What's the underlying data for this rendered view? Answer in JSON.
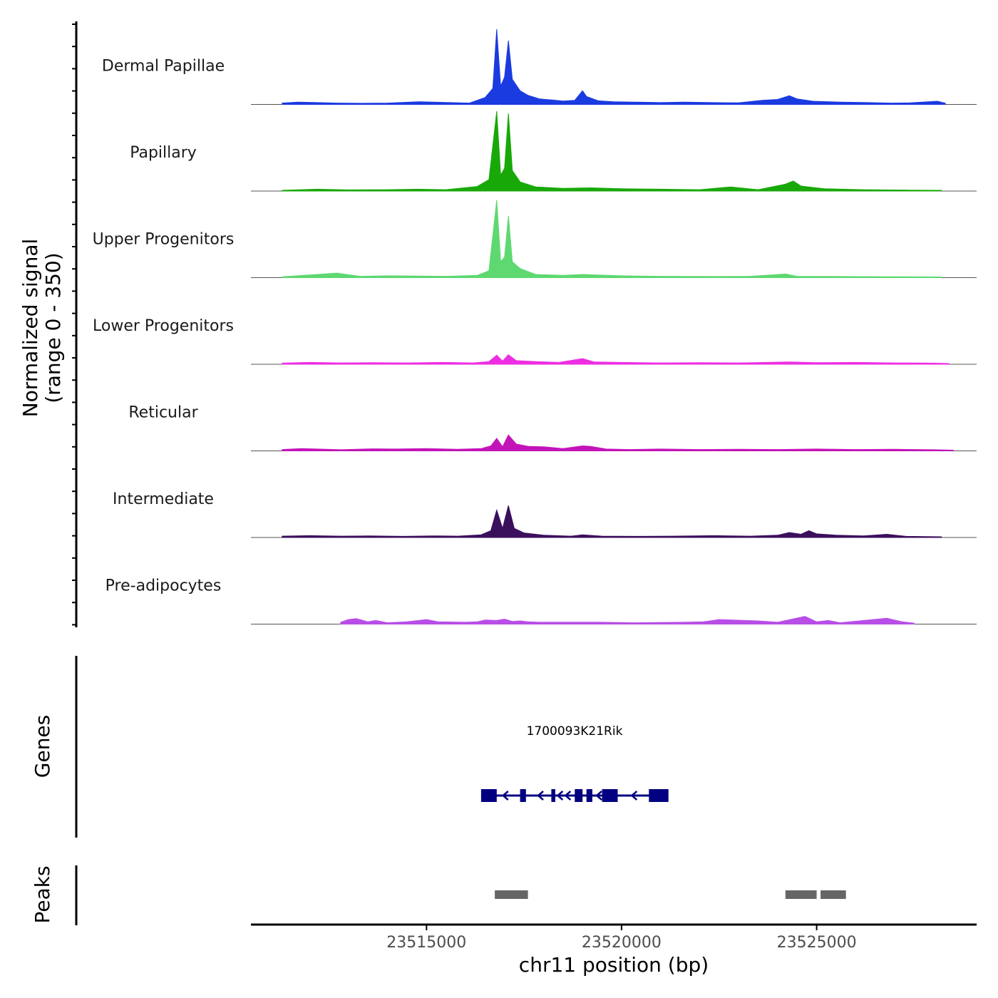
{
  "chart_data": {
    "type": "area",
    "title": "",
    "chromosome": "chr11",
    "xlabel": "chr11 position (bp)",
    "ylabel_line1": "Normalized signal",
    "ylabel_line2": "(range 0 - 350)",
    "y_range": [
      0,
      350
    ],
    "xlim": [
      23510500,
      23529100
    ],
    "x_ticks": [
      {
        "value": 23515000,
        "label": "23515000"
      },
      {
        "value": 23520000,
        "label": "23520000"
      },
      {
        "value": 23525000,
        "label": "23525000"
      }
    ],
    "series": [
      {
        "name": "Dermal Papillae",
        "color": "#1a3be0",
        "points": [
          [
            23511300,
            6
          ],
          [
            23511700,
            10
          ],
          [
            23512200,
            8
          ],
          [
            23512700,
            6
          ],
          [
            23513300,
            5
          ],
          [
            23514000,
            6
          ],
          [
            23514800,
            12
          ],
          [
            23515600,
            8
          ],
          [
            23516100,
            6
          ],
          [
            23516500,
            30
          ],
          [
            23516700,
            70
          ],
          [
            23516800,
            330
          ],
          [
            23516900,
            80
          ],
          [
            23517000,
            120
          ],
          [
            23517100,
            280
          ],
          [
            23517200,
            110
          ],
          [
            23517400,
            60
          ],
          [
            23517600,
            40
          ],
          [
            23517900,
            24
          ],
          [
            23518200,
            20
          ],
          [
            23518500,
            15
          ],
          [
            23518800,
            18
          ],
          [
            23519000,
            60
          ],
          [
            23519100,
            35
          ],
          [
            23519400,
            16
          ],
          [
            23519800,
            12
          ],
          [
            23520400,
            10
          ],
          [
            23521000,
            8
          ],
          [
            23521600,
            10
          ],
          [
            23522300,
            8
          ],
          [
            23523000,
            7
          ],
          [
            23523600,
            18
          ],
          [
            23524000,
            22
          ],
          [
            23524300,
            38
          ],
          [
            23524500,
            24
          ],
          [
            23524900,
            14
          ],
          [
            23525600,
            10
          ],
          [
            23526300,
            8
          ],
          [
            23526900,
            6
          ],
          [
            23527400,
            7
          ],
          [
            23528100,
            14
          ],
          [
            23528300,
            5
          ]
        ]
      },
      {
        "name": "Papillary",
        "color": "#18a808",
        "points": [
          [
            23511300,
            3
          ],
          [
            23512200,
            8
          ],
          [
            23513000,
            5
          ],
          [
            23514000,
            6
          ],
          [
            23514800,
            8
          ],
          [
            23515500,
            6
          ],
          [
            23516300,
            20
          ],
          [
            23516600,
            50
          ],
          [
            23516800,
            350
          ],
          [
            23516900,
            70
          ],
          [
            23517000,
            100
          ],
          [
            23517100,
            340
          ],
          [
            23517200,
            90
          ],
          [
            23517400,
            40
          ],
          [
            23517800,
            18
          ],
          [
            23518500,
            12
          ],
          [
            23519200,
            14
          ],
          [
            23520000,
            10
          ],
          [
            23521000,
            8
          ],
          [
            23522000,
            6
          ],
          [
            23522800,
            18
          ],
          [
            23523500,
            6
          ],
          [
            23524200,
            30
          ],
          [
            23524400,
            44
          ],
          [
            23524600,
            22
          ],
          [
            23525200,
            10
          ],
          [
            23526200,
            6
          ],
          [
            23527400,
            4
          ],
          [
            23528200,
            3
          ]
        ]
      },
      {
        "name": "Upper Progenitors",
        "color": "#5ed870",
        "points": [
          [
            23511300,
            4
          ],
          [
            23512200,
            14
          ],
          [
            23512700,
            20
          ],
          [
            23513300,
            6
          ],
          [
            23514000,
            8
          ],
          [
            23514900,
            7
          ],
          [
            23515500,
            6
          ],
          [
            23516300,
            10
          ],
          [
            23516600,
            30
          ],
          [
            23516800,
            340
          ],
          [
            23516900,
            70
          ],
          [
            23517000,
            90
          ],
          [
            23517100,
            270
          ],
          [
            23517200,
            70
          ],
          [
            23517400,
            40
          ],
          [
            23517800,
            14
          ],
          [
            23518500,
            10
          ],
          [
            23519000,
            14
          ],
          [
            23520000,
            8
          ],
          [
            23521000,
            6
          ],
          [
            23522400,
            5
          ],
          [
            23523300,
            6
          ],
          [
            23524200,
            16
          ],
          [
            23524500,
            6
          ],
          [
            23525600,
            5
          ],
          [
            23527000,
            4
          ],
          [
            23528200,
            3
          ]
        ]
      },
      {
        "name": "Lower Progenitors",
        "color": "#ee2ee2",
        "points": [
          [
            23511300,
            5
          ],
          [
            23512000,
            8
          ],
          [
            23512800,
            6
          ],
          [
            23513600,
            7
          ],
          [
            23514500,
            6
          ],
          [
            23515400,
            8
          ],
          [
            23516200,
            6
          ],
          [
            23516600,
            12
          ],
          [
            23516800,
            40
          ],
          [
            23516950,
            14
          ],
          [
            23517100,
            42
          ],
          [
            23517300,
            16
          ],
          [
            23517800,
            12
          ],
          [
            23518400,
            8
          ],
          [
            23519000,
            25
          ],
          [
            23519300,
            10
          ],
          [
            23520000,
            8
          ],
          [
            23521000,
            6
          ],
          [
            23522000,
            7
          ],
          [
            23523000,
            6
          ],
          [
            23524300,
            10
          ],
          [
            23525000,
            7
          ],
          [
            23526000,
            8
          ],
          [
            23527000,
            6
          ],
          [
            23528000,
            5
          ],
          [
            23528400,
            3
          ]
        ]
      },
      {
        "name": "Reticular",
        "color": "#c214b8",
        "points": [
          [
            23511300,
            6
          ],
          [
            23511800,
            10
          ],
          [
            23512200,
            8
          ],
          [
            23512800,
            5
          ],
          [
            23513600,
            9
          ],
          [
            23514200,
            8
          ],
          [
            23515000,
            10
          ],
          [
            23515800,
            7
          ],
          [
            23516400,
            10
          ],
          [
            23516650,
            22
          ],
          [
            23516800,
            55
          ],
          [
            23516950,
            18
          ],
          [
            23517100,
            70
          ],
          [
            23517300,
            30
          ],
          [
            23517600,
            20
          ],
          [
            23518000,
            18
          ],
          [
            23518500,
            10
          ],
          [
            23519000,
            22
          ],
          [
            23519200,
            20
          ],
          [
            23519600,
            8
          ],
          [
            23520200,
            6
          ],
          [
            23521000,
            8
          ],
          [
            23522000,
            6
          ],
          [
            23523000,
            7
          ],
          [
            23524000,
            6
          ],
          [
            23525000,
            8
          ],
          [
            23526000,
            6
          ],
          [
            23527000,
            7
          ],
          [
            23528000,
            5
          ],
          [
            23528500,
            3
          ]
        ]
      },
      {
        "name": "Intermediate",
        "color": "#3a0f5c",
        "points": [
          [
            23511300,
            6
          ],
          [
            23512000,
            8
          ],
          [
            23512800,
            6
          ],
          [
            23513500,
            7
          ],
          [
            23514400,
            5
          ],
          [
            23515200,
            7
          ],
          [
            23515800,
            6
          ],
          [
            23516400,
            12
          ],
          [
            23516650,
            30
          ],
          [
            23516800,
            120
          ],
          [
            23516950,
            40
          ],
          [
            23517100,
            140
          ],
          [
            23517250,
            40
          ],
          [
            23517500,
            20
          ],
          [
            23518000,
            10
          ],
          [
            23518700,
            6
          ],
          [
            23519000,
            12
          ],
          [
            23519500,
            6
          ],
          [
            23520500,
            5
          ],
          [
            23521300,
            6
          ],
          [
            23522400,
            8
          ],
          [
            23523300,
            6
          ],
          [
            23524000,
            10
          ],
          [
            23524300,
            22
          ],
          [
            23524600,
            14
          ],
          [
            23524800,
            30
          ],
          [
            23525000,
            16
          ],
          [
            23525500,
            10
          ],
          [
            23526200,
            7
          ],
          [
            23526800,
            14
          ],
          [
            23527300,
            5
          ],
          [
            23528200,
            3
          ]
        ]
      },
      {
        "name": "Pre-adipocytes",
        "color": "#b84ee6",
        "points": [
          [
            23512800,
            8
          ],
          [
            23513000,
            20
          ],
          [
            23513200,
            24
          ],
          [
            23513500,
            10
          ],
          [
            23513700,
            16
          ],
          [
            23514000,
            6
          ],
          [
            23514500,
            10
          ],
          [
            23515000,
            20
          ],
          [
            23515300,
            10
          ],
          [
            23516000,
            8
          ],
          [
            23516300,
            10
          ],
          [
            23516500,
            18
          ],
          [
            23516800,
            16
          ],
          [
            23517000,
            22
          ],
          [
            23517200,
            12
          ],
          [
            23517400,
            14
          ],
          [
            23517600,
            10
          ],
          [
            23517900,
            8
          ],
          [
            23519500,
            8
          ],
          [
            23520300,
            6
          ],
          [
            23521600,
            8
          ],
          [
            23522100,
            10
          ],
          [
            23522500,
            20
          ],
          [
            23523500,
            14
          ],
          [
            23524000,
            8
          ],
          [
            23524700,
            34
          ],
          [
            23525000,
            10
          ],
          [
            23525300,
            16
          ],
          [
            23525600,
            6
          ],
          [
            23526800,
            26
          ],
          [
            23527200,
            10
          ],
          [
            23527500,
            4
          ]
        ]
      }
    ],
    "genes": {
      "title": "Genes",
      "label": "1700093K21Rik",
      "color": "#000080",
      "strand": "-",
      "start": 23516400,
      "end": 23521200,
      "exons": [
        [
          23516400,
          23516800
        ],
        [
          23517400,
          23517550
        ],
        [
          23518200,
          23518300
        ],
        [
          23518800,
          23519000
        ],
        [
          23519100,
          23519250
        ],
        [
          23519500,
          23519900
        ],
        [
          23520700,
          23521200
        ]
      ],
      "arrows": [
        23517000,
        23517900,
        23518400,
        23518600,
        23519400,
        23520300
      ]
    },
    "peaks": {
      "title": "Peaks",
      "color": "#666666",
      "regions": [
        [
          23516750,
          23517600
        ],
        [
          23524200,
          23525000
        ],
        [
          23525100,
          23525750
        ]
      ]
    }
  }
}
